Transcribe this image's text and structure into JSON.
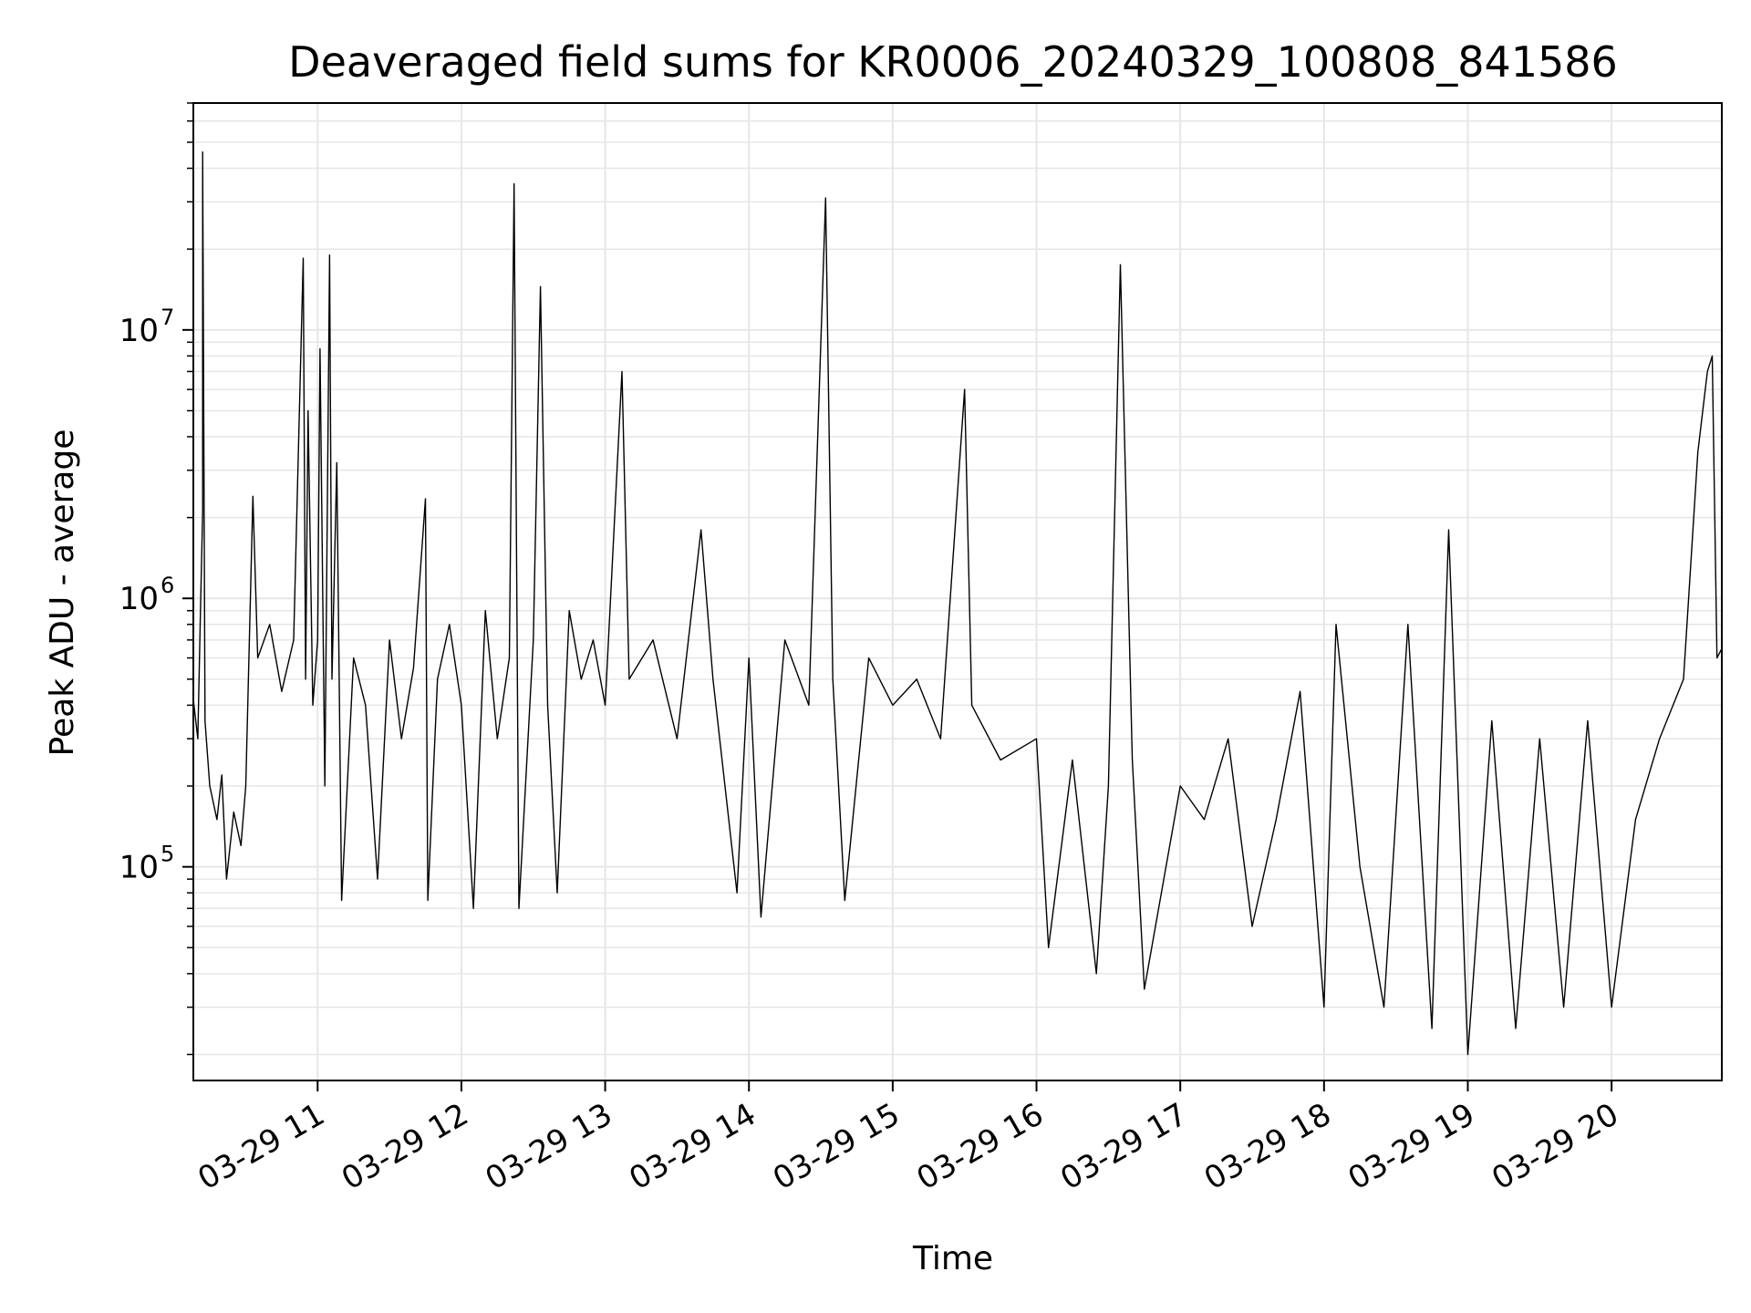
{
  "chart_data": {
    "type": "line",
    "title": "Deaveraged field sums for KR0006_20240329_100808_841586",
    "xlabel": "Time",
    "ylabel": "Peak ADU - average",
    "yscale": "log",
    "ylim": [
      16000,
      70000000
    ],
    "xlim": [
      "2024-03-29 10:08:08",
      "2024-03-29 20:46:00"
    ],
    "grid": {
      "major": true,
      "minor_y": true,
      "color": "#e6e6e6"
    },
    "line_color": "#000000",
    "x_ticks": [
      {
        "time": "2024-03-29 11:00",
        "label": "03-29 11"
      },
      {
        "time": "2024-03-29 12:00",
        "label": "03-29 12"
      },
      {
        "time": "2024-03-29 13:00",
        "label": "03-29 13"
      },
      {
        "time": "2024-03-29 14:00",
        "label": "03-29 14"
      },
      {
        "time": "2024-03-29 15:00",
        "label": "03-29 15"
      },
      {
        "time": "2024-03-29 16:00",
        "label": "03-29 16"
      },
      {
        "time": "2024-03-29 17:00",
        "label": "03-29 17"
      },
      {
        "time": "2024-03-29 18:00",
        "label": "03-29 18"
      },
      {
        "time": "2024-03-29 19:00",
        "label": "03-29 19"
      },
      {
        "time": "2024-03-29 20:00",
        "label": "03-29 20"
      }
    ],
    "y_ticks": [
      {
        "value": 100000,
        "base": "10",
        "exp": "5"
      },
      {
        "value": 1000000,
        "base": "10",
        "exp": "6"
      },
      {
        "value": 10000000,
        "base": "10",
        "exp": "7"
      }
    ],
    "series": [
      {
        "points": [
          [
            "2024-03-29 10:08",
            420000
          ],
          [
            "2024-03-29 10:10",
            300000
          ],
          [
            "2024-03-29 10:11",
            800000
          ],
          [
            "2024-03-29 10:12",
            2100000
          ],
          [
            "2024-03-29 10:12",
            46000000
          ],
          [
            "2024-03-29 10:13",
            350000
          ],
          [
            "2024-03-29 10:15",
            200000
          ],
          [
            "2024-03-29 10:18",
            150000
          ],
          [
            "2024-03-29 10:20",
            220000
          ],
          [
            "2024-03-29 10:22",
            90000
          ],
          [
            "2024-03-29 10:25",
            160000
          ],
          [
            "2024-03-29 10:28",
            120000
          ],
          [
            "2024-03-29 10:30",
            200000
          ],
          [
            "2024-03-29 10:33",
            2400000
          ],
          [
            "2024-03-29 10:35",
            600000
          ],
          [
            "2024-03-29 10:40",
            800000
          ],
          [
            "2024-03-29 10:45",
            450000
          ],
          [
            "2024-03-29 10:50",
            700000
          ],
          [
            "2024-03-29 10:54",
            18500000
          ],
          [
            "2024-03-29 10:55",
            500000
          ],
          [
            "2024-03-29 10:56",
            5000000
          ],
          [
            "2024-03-29 10:58",
            400000
          ],
          [
            "2024-03-29 11:00",
            700000
          ],
          [
            "2024-03-29 11:01",
            8500000
          ],
          [
            "2024-03-29 11:03",
            200000
          ],
          [
            "2024-03-29 11:05",
            19000000
          ],
          [
            "2024-03-29 11:06",
            500000
          ],
          [
            "2024-03-29 11:08",
            3200000
          ],
          [
            "2024-03-29 11:10",
            75000
          ],
          [
            "2024-03-29 11:15",
            600000
          ],
          [
            "2024-03-29 11:20",
            400000
          ],
          [
            "2024-03-29 11:25",
            90000
          ],
          [
            "2024-03-29 11:30",
            700000
          ],
          [
            "2024-03-29 11:35",
            300000
          ],
          [
            "2024-03-29 11:40",
            550000
          ],
          [
            "2024-03-29 11:45",
            2350000
          ],
          [
            "2024-03-29 11:46",
            75000
          ],
          [
            "2024-03-29 11:50",
            500000
          ],
          [
            "2024-03-29 11:55",
            800000
          ],
          [
            "2024-03-29 12:00",
            400000
          ],
          [
            "2024-03-29 12:05",
            70000
          ],
          [
            "2024-03-29 12:10",
            900000
          ],
          [
            "2024-03-29 12:15",
            300000
          ],
          [
            "2024-03-29 12:20",
            600000
          ],
          [
            "2024-03-29 12:22",
            35000000
          ],
          [
            "2024-03-29 12:24",
            70000
          ],
          [
            "2024-03-29 12:30",
            700000
          ],
          [
            "2024-03-29 12:33",
            14500000
          ],
          [
            "2024-03-29 12:36",
            400000
          ],
          [
            "2024-03-29 12:40",
            80000
          ],
          [
            "2024-03-29 12:45",
            900000
          ],
          [
            "2024-03-29 12:50",
            500000
          ],
          [
            "2024-03-29 12:55",
            700000
          ],
          [
            "2024-03-29 13:00",
            400000
          ],
          [
            "2024-03-29 13:07",
            7000000
          ],
          [
            "2024-03-29 13:10",
            500000
          ],
          [
            "2024-03-29 13:20",
            700000
          ],
          [
            "2024-03-29 13:30",
            300000
          ],
          [
            "2024-03-29 13:40",
            1800000
          ],
          [
            "2024-03-29 13:45",
            500000
          ],
          [
            "2024-03-29 13:55",
            80000
          ],
          [
            "2024-03-29 14:00",
            600000
          ],
          [
            "2024-03-29 14:05",
            65000
          ],
          [
            "2024-03-29 14:15",
            700000
          ],
          [
            "2024-03-29 14:25",
            400000
          ],
          [
            "2024-03-29 14:32",
            31000000
          ],
          [
            "2024-03-29 14:35",
            500000
          ],
          [
            "2024-03-29 14:40",
            75000
          ],
          [
            "2024-03-29 14:50",
            600000
          ],
          [
            "2024-03-29 15:00",
            400000
          ],
          [
            "2024-03-29 15:10",
            500000
          ],
          [
            "2024-03-29 15:20",
            300000
          ],
          [
            "2024-03-29 15:30",
            6000000
          ],
          [
            "2024-03-29 15:33",
            400000
          ],
          [
            "2024-03-29 15:45",
            250000
          ],
          [
            "2024-03-29 16:00",
            300000
          ],
          [
            "2024-03-29 16:05",
            50000
          ],
          [
            "2024-03-29 16:15",
            250000
          ],
          [
            "2024-03-29 16:25",
            40000
          ],
          [
            "2024-03-29 16:30",
            200000
          ],
          [
            "2024-03-29 16:35",
            17500000
          ],
          [
            "2024-03-29 16:40",
            250000
          ],
          [
            "2024-03-29 16:45",
            35000
          ],
          [
            "2024-03-29 17:00",
            200000
          ],
          [
            "2024-03-29 17:10",
            150000
          ],
          [
            "2024-03-29 17:20",
            300000
          ],
          [
            "2024-03-29 17:30",
            60000
          ],
          [
            "2024-03-29 17:40",
            150000
          ],
          [
            "2024-03-29 17:50",
            450000
          ],
          [
            "2024-03-29 18:00",
            30000
          ],
          [
            "2024-03-29 18:05",
            800000
          ],
          [
            "2024-03-29 18:15",
            100000
          ],
          [
            "2024-03-29 18:25",
            30000
          ],
          [
            "2024-03-29 18:35",
            800000
          ],
          [
            "2024-03-29 18:45",
            25000
          ],
          [
            "2024-03-29 18:52",
            1800000
          ],
          [
            "2024-03-29 19:00",
            20000
          ],
          [
            "2024-03-29 19:10",
            350000
          ],
          [
            "2024-03-29 19:20",
            25000
          ],
          [
            "2024-03-29 19:30",
            300000
          ],
          [
            "2024-03-29 19:40",
            30000
          ],
          [
            "2024-03-29 19:50",
            350000
          ],
          [
            "2024-03-29 20:00",
            30000
          ],
          [
            "2024-03-29 20:10",
            150000
          ],
          [
            "2024-03-29 20:20",
            300000
          ],
          [
            "2024-03-29 20:30",
            500000
          ],
          [
            "2024-03-29 20:36",
            3500000
          ],
          [
            "2024-03-29 20:40",
            7000000
          ],
          [
            "2024-03-29 20:42",
            8000000
          ],
          [
            "2024-03-29 20:44",
            600000
          ],
          [
            "2024-03-29 20:46",
            650000
          ]
        ]
      }
    ]
  }
}
